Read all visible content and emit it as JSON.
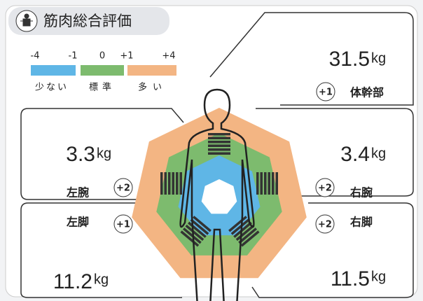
{
  "header": {
    "title": "筋肉総合評価"
  },
  "scale": {
    "ticks": [
      "-4",
      "-1",
      "0",
      "+1",
      "+4"
    ],
    "labels": [
      "少ない",
      "標準",
      "多い"
    ]
  },
  "unit": "kg",
  "parts": [
    {
      "name": "体幹部",
      "value": "31.5",
      "rating": "+1"
    },
    {
      "name": "左腕",
      "value": "3.3",
      "rating": "+2"
    },
    {
      "name": "右腕",
      "value": "3.4",
      "rating": "+2"
    },
    {
      "name": "左脚",
      "value": "11.2",
      "rating": "+1"
    },
    {
      "name": "右脚",
      "value": "11.5",
      "rating": "+2"
    }
  ]
}
